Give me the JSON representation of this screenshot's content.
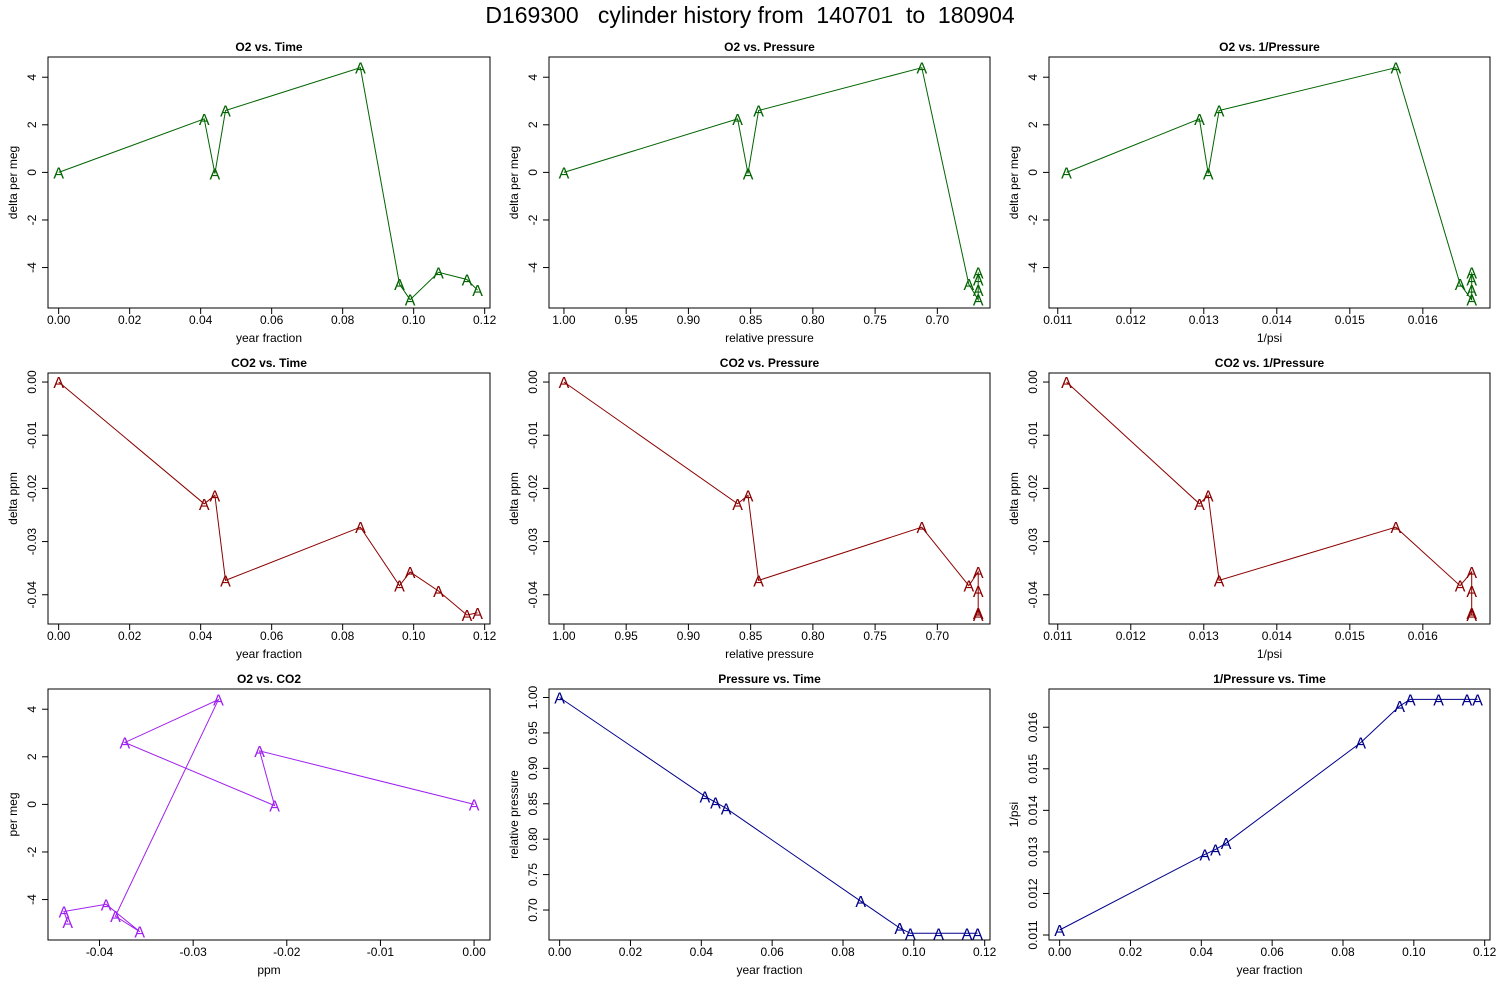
{
  "page": {
    "title": "D169300   cylinder history from  140701  to  180904"
  },
  "chart_data": [
    {
      "type": "line",
      "title": "O2 vs. Time",
      "xlabel": "year fraction",
      "ylabel": "delta per meg",
      "color": "#006400",
      "marker": "A",
      "xlim": [
        -0.003,
        0.1215
      ],
      "ylim": [
        -5.7,
        4.85
      ],
      "reverse_x": false,
      "xticks": [
        0,
        0.02,
        0.04,
        0.06,
        0.08,
        0.1,
        0.12
      ],
      "xtick_labels": [
        "0.00",
        "0.02",
        "0.04",
        "0.06",
        "0.08",
        "0.10",
        "0.12"
      ],
      "yticks": [
        -4,
        -2,
        0,
        2,
        4
      ],
      "ytick_labels": [
        "-4",
        "-2",
        "0",
        "2",
        "4"
      ],
      "x": [
        0.0,
        0.041,
        0.044,
        0.047,
        0.085,
        0.096,
        0.099,
        0.107,
        0.115,
        0.118
      ],
      "y": [
        0.0,
        2.25,
        -0.05,
        2.6,
        4.4,
        -4.7,
        -5.35,
        -4.2,
        -4.5,
        -4.95
      ]
    },
    {
      "type": "line",
      "title": "O2 vs. Pressure",
      "xlabel": "relative pressure",
      "ylabel": "delta per meg",
      "color": "#006400",
      "marker": "A",
      "xlim": [
        1.012,
        0.6577
      ],
      "ylim": [
        -5.7,
        4.85
      ],
      "reverse_x": true,
      "xticks": [
        1.0,
        0.95,
        0.9,
        0.85,
        0.8,
        0.75,
        0.7
      ],
      "xtick_labels": [
        "1.00",
        "0.95",
        "0.90",
        "0.85",
        "0.80",
        "0.75",
        "0.70"
      ],
      "yticks": [
        -4,
        -2,
        0,
        2,
        4
      ],
      "ytick_labels": [
        "-4",
        "-2",
        "0",
        "2",
        "4"
      ],
      "x": [
        1.0,
        0.8605,
        0.8521,
        0.8436,
        0.7125,
        0.6747,
        0.6672,
        0.6672,
        0.6672,
        0.6672
      ],
      "y": [
        0.0,
        2.25,
        -0.05,
        2.6,
        4.4,
        -4.7,
        -5.35,
        -4.2,
        -4.5,
        -4.95
      ]
    },
    {
      "type": "line",
      "title": "O2 vs. 1/Pressure",
      "xlabel": "1/psi",
      "ylabel": "delta per meg",
      "color": "#006400",
      "marker": "A",
      "xlim": [
        0.01088,
        0.01692
      ],
      "ylim": [
        -5.7,
        4.85
      ],
      "reverse_x": false,
      "xticks": [
        0.011,
        0.012,
        0.013,
        0.014,
        0.015,
        0.016
      ],
      "xtick_labels": [
        "0.011",
        "0.012",
        "0.013",
        "0.014",
        "0.015",
        "0.016"
      ],
      "yticks": [
        -4,
        -2,
        0,
        2,
        4
      ],
      "ytick_labels": [
        "-4",
        "-2",
        "0",
        "2",
        "4"
      ],
      "x": [
        0.01112,
        0.01294,
        0.01306,
        0.01321,
        0.01563,
        0.01651,
        0.01667,
        0.01667,
        0.01667,
        0.01667
      ],
      "y": [
        0.0,
        2.25,
        -0.05,
        2.6,
        4.4,
        -4.7,
        -5.35,
        -4.2,
        -4.5,
        -4.95
      ]
    },
    {
      "type": "line",
      "title": "CO2 vs. Time",
      "xlabel": "year fraction",
      "ylabel": "delta ppm",
      "color": "#8B0000",
      "marker": "A",
      "xlim": [
        -0.003,
        0.1215
      ],
      "ylim": [
        -0.0455,
        0.0017
      ],
      "reverse_x": false,
      "xticks": [
        0,
        0.02,
        0.04,
        0.06,
        0.08,
        0.1,
        0.12
      ],
      "xtick_labels": [
        "0.00",
        "0.02",
        "0.04",
        "0.06",
        "0.08",
        "0.10",
        "0.12"
      ],
      "yticks": [
        -0.04,
        -0.03,
        -0.02,
        -0.01,
        0.0
      ],
      "ytick_labels": [
        "-0.04",
        "-0.03",
        "-0.02",
        "-0.01",
        "0.00"
      ],
      "x": [
        0.0,
        0.041,
        0.044,
        0.047,
        0.085,
        0.096,
        0.099,
        0.107,
        0.115,
        0.118
      ],
      "y": [
        0.0,
        -0.0229,
        -0.0213,
        -0.0373,
        -0.0273,
        -0.0383,
        -0.0357,
        -0.0393,
        -0.0438,
        -0.0434
      ]
    },
    {
      "type": "line",
      "title": "CO2 vs. Pressure",
      "xlabel": "relative pressure",
      "ylabel": "delta ppm",
      "color": "#8B0000",
      "marker": "A",
      "xlim": [
        1.012,
        0.6577
      ],
      "ylim": [
        -0.0455,
        0.0017
      ],
      "reverse_x": true,
      "xticks": [
        1.0,
        0.95,
        0.9,
        0.85,
        0.8,
        0.75,
        0.7
      ],
      "xtick_labels": [
        "1.00",
        "0.95",
        "0.90",
        "0.85",
        "0.80",
        "0.75",
        "0.70"
      ],
      "yticks": [
        -0.04,
        -0.03,
        -0.02,
        -0.01,
        0.0
      ],
      "ytick_labels": [
        "-0.04",
        "-0.03",
        "-0.02",
        "-0.01",
        "0.00"
      ],
      "x": [
        1.0,
        0.8605,
        0.8521,
        0.8436,
        0.7125,
        0.6747,
        0.6672,
        0.6672,
        0.6672,
        0.6672
      ],
      "y": [
        0.0,
        -0.0229,
        -0.0213,
        -0.0373,
        -0.0273,
        -0.0383,
        -0.0357,
        -0.0393,
        -0.0438,
        -0.0434
      ]
    },
    {
      "type": "line",
      "title": "CO2 vs. 1/Pressure",
      "xlabel": "1/psi",
      "ylabel": "delta ppm",
      "color": "#8B0000",
      "marker": "A",
      "xlim": [
        0.01088,
        0.01692
      ],
      "ylim": [
        -0.0455,
        0.0017
      ],
      "reverse_x": false,
      "xticks": [
        0.011,
        0.012,
        0.013,
        0.014,
        0.015,
        0.016
      ],
      "xtick_labels": [
        "0.011",
        "0.012",
        "0.013",
        "0.014",
        "0.015",
        "0.016"
      ],
      "yticks": [
        -0.04,
        -0.03,
        -0.02,
        -0.01,
        0.0
      ],
      "ytick_labels": [
        "-0.04",
        "-0.03",
        "-0.02",
        "-0.01",
        "0.00"
      ],
      "x": [
        0.01112,
        0.01294,
        0.01306,
        0.01321,
        0.01563,
        0.01651,
        0.01667,
        0.01667,
        0.01667,
        0.01667
      ],
      "y": [
        0.0,
        -0.0229,
        -0.0213,
        -0.0373,
        -0.0273,
        -0.0383,
        -0.0357,
        -0.0393,
        -0.0438,
        -0.0434
      ]
    },
    {
      "type": "line",
      "title": "O2 vs. CO2",
      "xlabel": "ppm",
      "ylabel": "per meg",
      "color": "#A020F0",
      "marker": "A",
      "xlim": [
        -0.0455,
        0.0017
      ],
      "ylim": [
        -5.7,
        4.85
      ],
      "reverse_x": false,
      "xticks": [
        -0.04,
        -0.03,
        -0.02,
        -0.01,
        0.0
      ],
      "xtick_labels": [
        "-0.04",
        "-0.03",
        "-0.02",
        "-0.01",
        "0.00"
      ],
      "yticks": [
        -4,
        -2,
        0,
        2,
        4
      ],
      "ytick_labels": [
        "-4",
        "-2",
        "0",
        "2",
        "4"
      ],
      "x": [
        0.0,
        -0.0229,
        -0.0213,
        -0.0373,
        -0.0273,
        -0.0383,
        -0.0357,
        -0.0393,
        -0.0438,
        -0.0434
      ],
      "y": [
        0.0,
        2.25,
        -0.05,
        2.6,
        4.4,
        -4.7,
        -5.35,
        -4.2,
        -4.5,
        -4.95
      ]
    },
    {
      "type": "line",
      "title": "Pressure vs. Time",
      "xlabel": "year fraction",
      "ylabel": "relative pressure",
      "color": "#00008B",
      "marker": "A",
      "xlim": [
        -0.003,
        0.1215
      ],
      "ylim": [
        0.6577,
        1.012
      ],
      "reverse_x": false,
      "xticks": [
        0,
        0.02,
        0.04,
        0.06,
        0.08,
        0.1,
        0.12
      ],
      "xtick_labels": [
        "0.00",
        "0.02",
        "0.04",
        "0.06",
        "0.08",
        "0.10",
        "0.12"
      ],
      "yticks": [
        0.7,
        0.75,
        0.8,
        0.85,
        0.9,
        0.95,
        1.0
      ],
      "ytick_labels": [
        "0.70",
        "0.75",
        "0.80",
        "0.85",
        "0.90",
        "0.95",
        "1.00"
      ],
      "x": [
        0.0,
        0.041,
        0.044,
        0.047,
        0.085,
        0.096,
        0.099,
        0.107,
        0.115,
        0.118
      ],
      "y": [
        1.0,
        0.8605,
        0.8521,
        0.8436,
        0.7125,
        0.6747,
        0.6672,
        0.6672,
        0.6672,
        0.6672
      ]
    },
    {
      "type": "line",
      "title": "1/Pressure vs. Time",
      "xlabel": "year fraction",
      "ylabel": "1/psi",
      "color": "#00008B",
      "marker": "A",
      "xlim": [
        -0.003,
        0.1215
      ],
      "ylim": [
        0.01088,
        0.01692
      ],
      "reverse_x": false,
      "xticks": [
        0,
        0.02,
        0.04,
        0.06,
        0.08,
        0.1,
        0.12
      ],
      "xtick_labels": [
        "0.00",
        "0.02",
        "0.04",
        "0.06",
        "0.08",
        "0.10",
        "0.12"
      ],
      "yticks": [
        0.011,
        0.012,
        0.013,
        0.014,
        0.015,
        0.016
      ],
      "ytick_labels": [
        "0.011",
        "0.012",
        "0.013",
        "0.014",
        "0.015",
        "0.016"
      ],
      "x": [
        0.0,
        0.041,
        0.044,
        0.047,
        0.085,
        0.096,
        0.099,
        0.107,
        0.115,
        0.118
      ],
      "y": [
        0.01112,
        0.01294,
        0.01306,
        0.01321,
        0.01563,
        0.01651,
        0.01667,
        0.01667,
        0.01667,
        0.01667
      ]
    }
  ]
}
